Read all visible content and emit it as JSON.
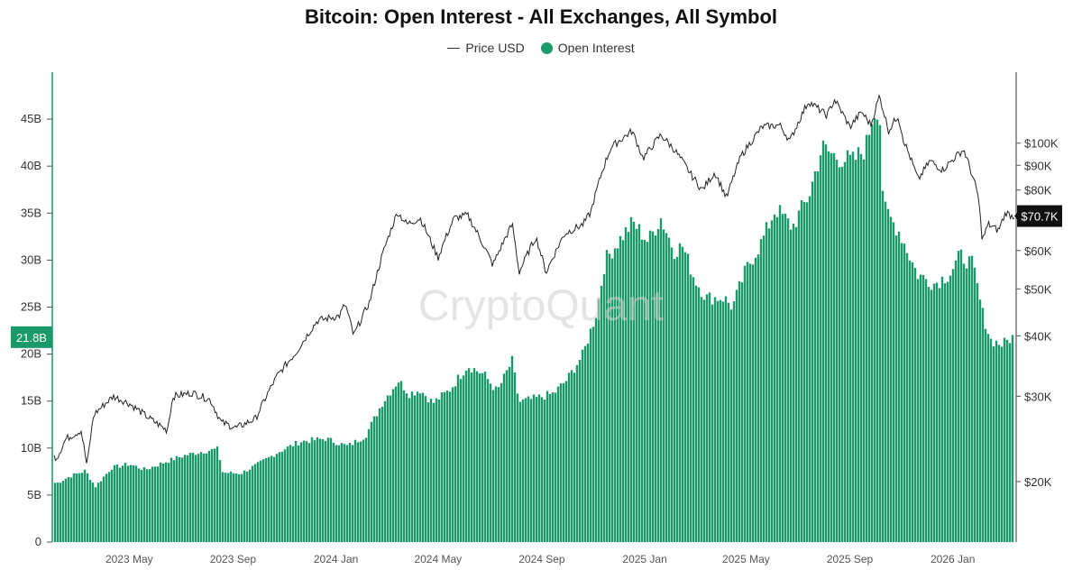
{
  "chart_data": {
    "type": "bar",
    "title": "Bitcoin: Open Interest - All Exchanges, All Symbol",
    "legend": {
      "placement": "top-center",
      "entries": [
        {
          "name": "Price USD",
          "style": "line",
          "color": "#222222"
        },
        {
          "name": "Open Interest",
          "style": "dot",
          "color": "#1a9a6a"
        }
      ]
    },
    "watermark": "CryptoQuant",
    "x_axis": {
      "start": "2023-02",
      "end": "2026-03",
      "ticks": [
        "2023 May",
        "2023 Sep",
        "2024 Jan",
        "2024 May",
        "2024 Sep",
        "2025 Jan",
        "2025 May",
        "2025 Sep",
        "2026 Jan"
      ]
    },
    "y_left": {
      "label": "",
      "ylim": [
        0,
        50
      ],
      "unit": "B",
      "ticks": [
        "0",
        "5B",
        "10B",
        "15B",
        "20B",
        "25B",
        "30B",
        "35B",
        "40B",
        "45B"
      ]
    },
    "y_right": {
      "label": "",
      "scale": "log",
      "ticks": [
        "$20K",
        "$30K",
        "$40K",
        "$50K",
        "$60K",
        "$70K",
        "$80K",
        "$90K",
        "$100K"
      ]
    },
    "current_values": {
      "open_interest_label": "21.8B",
      "price_label": "$70.7K"
    },
    "series": [
      {
        "name": "Open Interest",
        "unit": "B USD",
        "color": "#1a9a6a",
        "points": [
          [
            "2023-02-05",
            6.3
          ],
          [
            "2023-02-20",
            7.0
          ],
          [
            "2023-03-10",
            7.6
          ],
          [
            "2023-03-22",
            5.9
          ],
          [
            "2023-04-10",
            7.9
          ],
          [
            "2023-05-01",
            8.3
          ],
          [
            "2023-05-20",
            7.7
          ],
          [
            "2023-06-15",
            8.6
          ],
          [
            "2023-07-05",
            9.2
          ],
          [
            "2023-07-25",
            9.6
          ],
          [
            "2023-08-14",
            9.9
          ],
          [
            "2023-08-20",
            7.4
          ],
          [
            "2023-09-10",
            7.3
          ],
          [
            "2023-10-01",
            8.3
          ],
          [
            "2023-10-25",
            9.6
          ],
          [
            "2023-11-20",
            10.7
          ],
          [
            "2023-12-20",
            11.0
          ],
          [
            "2024-01-15",
            10.2
          ],
          [
            "2024-02-05",
            11.3
          ],
          [
            "2024-02-25",
            14.8
          ],
          [
            "2024-03-15",
            17.2
          ],
          [
            "2024-03-28",
            15.8
          ],
          [
            "2024-04-10",
            16.2
          ],
          [
            "2024-04-25",
            14.8
          ],
          [
            "2024-05-15",
            16.2
          ],
          [
            "2024-06-05",
            18.8
          ],
          [
            "2024-06-25",
            17.8
          ],
          [
            "2024-07-10",
            16.0
          ],
          [
            "2024-07-28",
            19.3
          ],
          [
            "2024-08-05",
            14.9
          ],
          [
            "2024-08-25",
            15.3
          ],
          [
            "2024-09-15",
            15.8
          ],
          [
            "2024-10-01",
            17.3
          ],
          [
            "2024-10-20",
            20.0
          ],
          [
            "2024-11-05",
            24.5
          ],
          [
            "2024-11-15",
            30.0
          ],
          [
            "2024-12-05",
            32.5
          ],
          [
            "2024-12-18",
            34.0
          ],
          [
            "2025-01-05",
            32.0
          ],
          [
            "2025-01-20",
            34.5
          ],
          [
            "2025-02-05",
            31.0
          ],
          [
            "2025-02-15",
            31.5
          ],
          [
            "2025-03-01",
            28.0
          ],
          [
            "2025-03-15",
            26.0
          ],
          [
            "2025-04-05",
            26.0
          ],
          [
            "2025-04-15",
            25.0
          ],
          [
            "2025-05-01",
            29.0
          ],
          [
            "2025-05-20",
            32.0
          ],
          [
            "2025-06-05",
            35.5
          ],
          [
            "2025-06-25",
            33.5
          ],
          [
            "2025-07-15",
            37.0
          ],
          [
            "2025-07-30",
            42.0
          ],
          [
            "2025-08-15",
            41.0
          ],
          [
            "2025-09-05",
            40.5
          ],
          [
            "2025-09-20",
            42.0
          ],
          [
            "2025-09-28",
            45.5
          ],
          [
            "2025-10-06",
            46.5
          ],
          [
            "2025-10-11",
            35.5
          ],
          [
            "2025-10-30",
            33.0
          ],
          [
            "2025-11-20",
            28.5
          ],
          [
            "2025-12-10",
            27.5
          ],
          [
            "2025-12-28",
            28.5
          ],
          [
            "2026-01-10",
            30.5
          ],
          [
            "2026-01-25",
            29.5
          ],
          [
            "2026-02-05",
            24.5
          ],
          [
            "2026-02-15",
            21.5
          ],
          [
            "2026-03-01",
            21.0
          ],
          [
            "2026-03-12",
            21.8
          ]
        ]
      },
      {
        "name": "Price USD",
        "unit": "USD",
        "color": "#222222",
        "points": [
          [
            "2023-02-05",
            22500
          ],
          [
            "2023-02-15",
            24500
          ],
          [
            "2023-03-05",
            25500
          ],
          [
            "2023-03-12",
            21500
          ],
          [
            "2023-03-20",
            27500
          ],
          [
            "2023-04-12",
            30000
          ],
          [
            "2023-05-01",
            29000
          ],
          [
            "2023-05-25",
            27000
          ],
          [
            "2023-06-15",
            25500
          ],
          [
            "2023-06-22",
            30000
          ],
          [
            "2023-07-15",
            30500
          ],
          [
            "2023-08-05",
            29500
          ],
          [
            "2023-08-18",
            26500
          ],
          [
            "2023-09-05",
            25800
          ],
          [
            "2023-09-28",
            27000
          ],
          [
            "2023-10-23",
            33000
          ],
          [
            "2023-11-15",
            37000
          ],
          [
            "2023-12-10",
            43000
          ],
          [
            "2024-01-05",
            44000
          ],
          [
            "2024-01-12",
            46500
          ],
          [
            "2024-01-22",
            40000
          ],
          [
            "2024-02-10",
            47000
          ],
          [
            "2024-02-28",
            61000
          ],
          [
            "2024-03-14",
            72000
          ],
          [
            "2024-03-25",
            68000
          ],
          [
            "2024-04-10",
            70000
          ],
          [
            "2024-04-20",
            64000
          ],
          [
            "2024-05-01",
            58000
          ],
          [
            "2024-05-20",
            70000
          ],
          [
            "2024-06-05",
            71000
          ],
          [
            "2024-06-25",
            61000
          ],
          [
            "2024-07-05",
            56000
          ],
          [
            "2024-07-28",
            68000
          ],
          [
            "2024-08-05",
            54000
          ],
          [
            "2024-08-25",
            64000
          ],
          [
            "2024-09-06",
            54000
          ],
          [
            "2024-09-28",
            65000
          ],
          [
            "2024-10-20",
            68000
          ],
          [
            "2024-10-29",
            72000
          ],
          [
            "2024-11-12",
            88000
          ],
          [
            "2024-11-22",
            98000
          ],
          [
            "2024-12-17",
            106000
          ],
          [
            "2024-12-30",
            93000
          ],
          [
            "2025-01-20",
            104000
          ],
          [
            "2025-02-05",
            97000
          ],
          [
            "2025-02-25",
            86000
          ],
          [
            "2025-03-10",
            80000
          ],
          [
            "2025-03-25",
            87000
          ],
          [
            "2025-04-08",
            77000
          ],
          [
            "2025-04-25",
            94000
          ],
          [
            "2025-05-20",
            108000
          ],
          [
            "2025-06-10",
            109000
          ],
          [
            "2025-06-22",
            101000
          ],
          [
            "2025-07-14",
            122000
          ],
          [
            "2025-08-05",
            114000
          ],
          [
            "2025-08-14",
            123000
          ],
          [
            "2025-09-01",
            108000
          ],
          [
            "2025-09-15",
            116000
          ],
          [
            "2025-09-26",
            109000
          ],
          [
            "2025-10-06",
            125000
          ],
          [
            "2025-10-17",
            106000
          ],
          [
            "2025-10-28",
            114000
          ],
          [
            "2025-11-04",
            101000
          ],
          [
            "2025-11-21",
            84000
          ],
          [
            "2025-12-05",
            92000
          ],
          [
            "2025-12-20",
            88000
          ],
          [
            "2026-01-05",
            94000
          ],
          [
            "2026-01-14",
            97000
          ],
          [
            "2026-01-31",
            78000
          ],
          [
            "2026-02-05",
            63000
          ],
          [
            "2026-02-12",
            68000
          ],
          [
            "2026-02-24",
            66000
          ],
          [
            "2026-03-05",
            72000
          ],
          [
            "2026-03-12",
            70700
          ]
        ]
      }
    ]
  }
}
